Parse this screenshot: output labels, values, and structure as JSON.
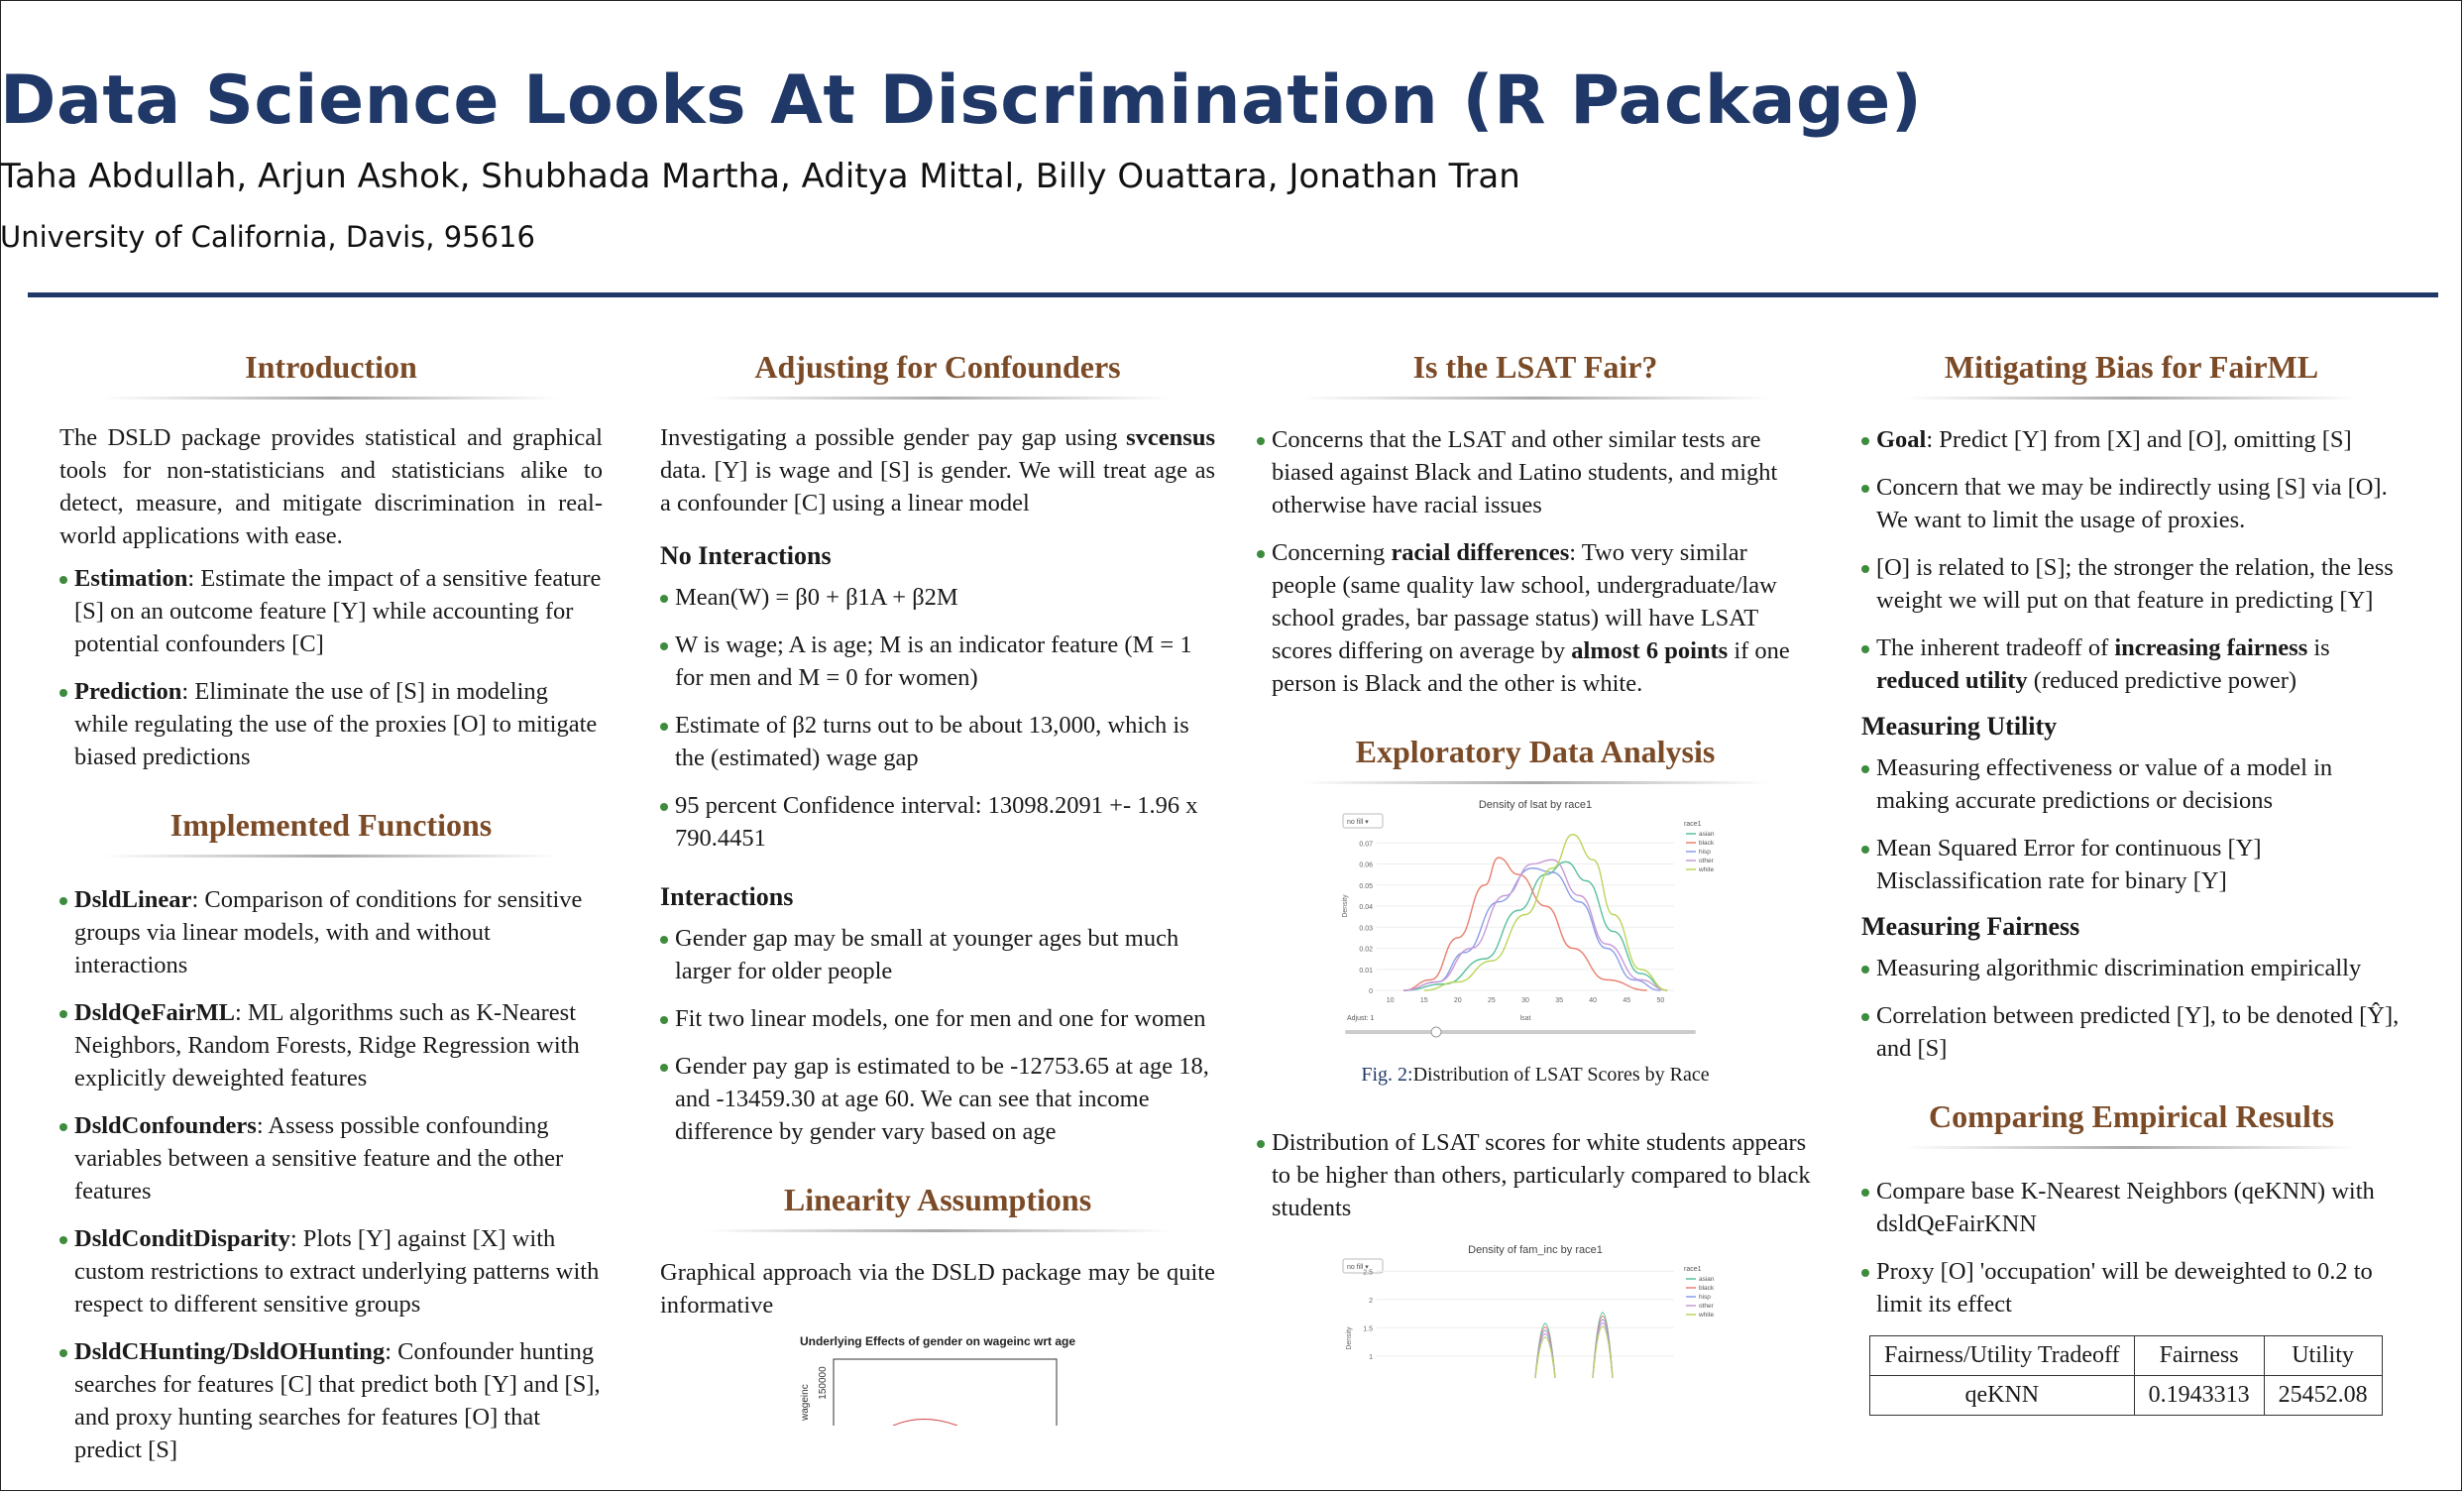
{
  "header": {
    "title": "Data Science Looks At Discrimination (R Package)",
    "authors": "Taha Abdullah, Arjun Ashok, Shubhada Martha, Aditya Mittal, Billy Ouattara, Jonathan Tran",
    "affiliation": "University of California, Davis, 95616"
  },
  "colors": {
    "title": "#1f3868",
    "section": "#7b4a26",
    "bullet": "#3d8b3d",
    "rule": "#1f3868"
  },
  "introduction": {
    "title": "Introduction",
    "text": "The DSLD package provides statistical and graphical tools for non-statisticians and statisticians alike to detect, measure, and mitigate discrimination in real-world applications with ease.",
    "bullets": [
      {
        "term": "Estimation",
        "text": ": Estimate the impact of a sensitive feature [S] on an outcome feature [Y] while accounting for potential confounders [C]"
      },
      {
        "term": "Prediction",
        "text": ": Eliminate the use of [S] in modeling while regulating the use of the proxies [O] to mitigate biased predictions"
      }
    ]
  },
  "functions": {
    "title": "Implemented Functions",
    "bullets": [
      {
        "term": "DsldLinear",
        "text": ": Comparison of conditions for sensitive groups via linear models, with and without interactions"
      },
      {
        "term": "DsldQeFairML",
        "text": ": ML algorithms such as K-Nearest Neighbors, Random Forests, Ridge Regression with explicitly deweighted features"
      },
      {
        "term": "DsldConfounders",
        "text": ": Assess possible confounding variables between a sensitive feature and the other features"
      },
      {
        "term": "DsldConditDisparity",
        "text": ": Plots [Y] against [X] with custom restrictions to extract underlying patterns with respect to different sensitive groups"
      },
      {
        "term": "DsldCHunting/DsldOHunting",
        "text": ": Confounder hunting searches for features [C] that predict both [Y] and [S], and proxy hunting searches for features [O] that predict [S]"
      }
    ]
  },
  "confounders": {
    "title": "Adjusting for Confounders",
    "text_a": "Investigating a possible gender pay gap using ",
    "text_bold": "svcensus",
    "text_b": " data. [Y] is wage and [S] is gender. We will treat age as a confounder [C] using a linear model",
    "no_int_heading": "No Interactions",
    "equation": "Mean(W) = β0 + β1A + β2M",
    "no_int_bullets": [
      "W is wage; A is age; M is an indicator feature (M = 1 for men and M = 0 for women)",
      "Estimate of β2 turns out to be about 13,000, which is the (estimated) wage gap",
      "95 percent Confidence interval: 13098.2091 +- 1.96 x 790.4451"
    ],
    "int_heading": "Interactions",
    "int_bullets": [
      "Gender gap may be small at younger ages but much larger for older people",
      "Fit two linear models, one for men and one for women",
      "Gender pay gap is estimated to be -12753.65 at age 18, and -13459.30 at age 60. We can see that income difference by gender vary based on age"
    ]
  },
  "linearity": {
    "title": "Linearity Assumptions",
    "text": "Graphical approach via the DSLD package may be quite informative",
    "chart_title": "Underlying Effects of gender on wageinc wrt age",
    "y_tick": "150000",
    "y_label": "wageinc"
  },
  "lsat": {
    "title": "Is the LSAT Fair?",
    "bullet1": "Concerns that the LSAT and other similar tests are biased against Black and Latino students, and might otherwise have racial issues",
    "bullet2_a": "Concerning ",
    "bullet2_b1": "racial differences",
    "bullet2_c": ": Two very similar people (same quality law school, undergraduate/law school grades, bar passage status) will have LSAT scores differing on average by ",
    "bullet2_b2": "almost 6 points",
    "bullet2_d": " if one person is Black and the other is white."
  },
  "eda": {
    "title": "Exploratory Data Analysis",
    "caption_label": "Fig. 2:",
    "caption_text": "Distribution of LSAT Scores by Race",
    "bullet": "Distribution of LSAT scores for white students appears to be higher than others, particularly compared to black students"
  },
  "chart_data": [
    {
      "type": "line",
      "title": "Density of lsat by race1",
      "xlabel": "lsat",
      "ylabel": "Density",
      "x_ticks": [
        "10",
        "15",
        "20",
        "25",
        "30",
        "35",
        "40",
        "45",
        "50"
      ],
      "y_ticks": [
        "0",
        "0.01",
        "0.02",
        "0.03",
        "0.04",
        "0.05",
        "0.06",
        "0.07"
      ],
      "xlim": [
        8,
        52
      ],
      "ylim": [
        0,
        0.08
      ],
      "legend_title": "race1",
      "legend_position": "right",
      "slider_label": "Adjust: 1",
      "dropdown": "no fill",
      "series": [
        {
          "name": "asian",
          "color": "#5bc0a0",
          "values": [
            [
              12,
              0.0
            ],
            [
              18,
              0.003
            ],
            [
              24,
              0.015
            ],
            [
              29,
              0.038
            ],
            [
              33,
              0.055
            ],
            [
              36,
              0.061
            ],
            [
              39,
              0.052
            ],
            [
              43,
              0.028
            ],
            [
              47,
              0.008
            ],
            [
              51,
              0.0
            ]
          ]
        },
        {
          "name": "black",
          "color": "#e8806f",
          "values": [
            [
              12,
              0.0
            ],
            [
              16,
              0.005
            ],
            [
              20,
              0.025
            ],
            [
              24,
              0.05
            ],
            [
              26,
              0.063
            ],
            [
              29,
              0.055
            ],
            [
              33,
              0.04
            ],
            [
              37,
              0.02
            ],
            [
              42,
              0.005
            ],
            [
              48,
              0.0
            ]
          ]
        },
        {
          "name": "hisp",
          "color": "#8c9ee8",
          "values": [
            [
              12,
              0.0
            ],
            [
              17,
              0.004
            ],
            [
              21,
              0.018
            ],
            [
              26,
              0.042
            ],
            [
              31,
              0.058
            ],
            [
              34,
              0.056
            ],
            [
              38,
              0.042
            ],
            [
              42,
              0.02
            ],
            [
              46,
              0.005
            ],
            [
              50,
              0.0
            ]
          ]
        },
        {
          "name": "other",
          "color": "#c79ad6",
          "values": [
            [
              12,
              0.0
            ],
            [
              17,
              0.004
            ],
            [
              22,
              0.02
            ],
            [
              27,
              0.045
            ],
            [
              31,
              0.06
            ],
            [
              34,
              0.062
            ],
            [
              38,
              0.045
            ],
            [
              42,
              0.022
            ],
            [
              47,
              0.005
            ],
            [
              51,
              0.0
            ]
          ]
        },
        {
          "name": "white",
          "color": "#b9d65a",
          "values": [
            [
              15,
              0.0
            ],
            [
              20,
              0.004
            ],
            [
              25,
              0.014
            ],
            [
              30,
              0.036
            ],
            [
              34,
              0.058
            ],
            [
              37,
              0.074
            ],
            [
              40,
              0.062
            ],
            [
              43,
              0.036
            ],
            [
              47,
              0.01
            ],
            [
              51,
              0.0
            ]
          ]
        }
      ]
    },
    {
      "type": "line",
      "title": "Density of fam_inc by race1",
      "ylabel": "Density",
      "y_ticks": [
        "1",
        "1.5",
        "2",
        "2.5"
      ],
      "legend_title": "race1",
      "legend_position": "right",
      "dropdown": "no fill",
      "series": [
        {
          "name": "asian",
          "color": "#5bc0a0"
        },
        {
          "name": "black",
          "color": "#e8806f"
        },
        {
          "name": "hisp",
          "color": "#8c9ee8"
        },
        {
          "name": "other",
          "color": "#c79ad6"
        },
        {
          "name": "white",
          "color": "#b9d65a"
        }
      ]
    }
  ],
  "fairml": {
    "title": "Mitigating Bias for FairML",
    "goal_term": "Goal",
    "goal_text": ": Predict [Y] from [X] and [O], omitting [S]",
    "bullet2": "Concern that we may be indirectly using [S] via [O]. We want to limit the usage of proxies.",
    "bullet3": "[O] is related to [S]; the stronger the relation, the less weight we will put on that feature in predicting [Y]",
    "bullet4_a": "The inherent tradeoff of ",
    "bullet4_b1": "increasing fairness",
    "bullet4_c": " is ",
    "bullet4_b2": "reduced utility",
    "bullet4_d": " (reduced predictive power)",
    "utility_heading": "Measuring Utility",
    "utility_bullets": [
      "Measuring effectiveness or value of a model in making accurate predictions or decisions",
      "Mean Squared Error for continuous [Y] Misclassification rate for binary [Y]"
    ],
    "fairness_heading": "Measuring Fairness",
    "fairness_bullet1": "Measuring algorithmic discrimination empirically",
    "fairness_bullet2": "Correlation between predicted [Y], to be denoted [Ŷ], and [S]"
  },
  "results": {
    "title": "Comparing Empirical Results",
    "bullet1": "Compare base K-Nearest Neighbors (qeKNN) with dsldQeFairKNN",
    "bullet2": "Proxy [O] 'occupation' will be deweighted to 0.2 to limit its effect",
    "table": {
      "headers": [
        "Fairness/Utility Tradeoff",
        "Fairness",
        "Utility"
      ],
      "rows": [
        [
          "qeKNN",
          "0.1943313",
          "25452.08"
        ]
      ]
    }
  }
}
